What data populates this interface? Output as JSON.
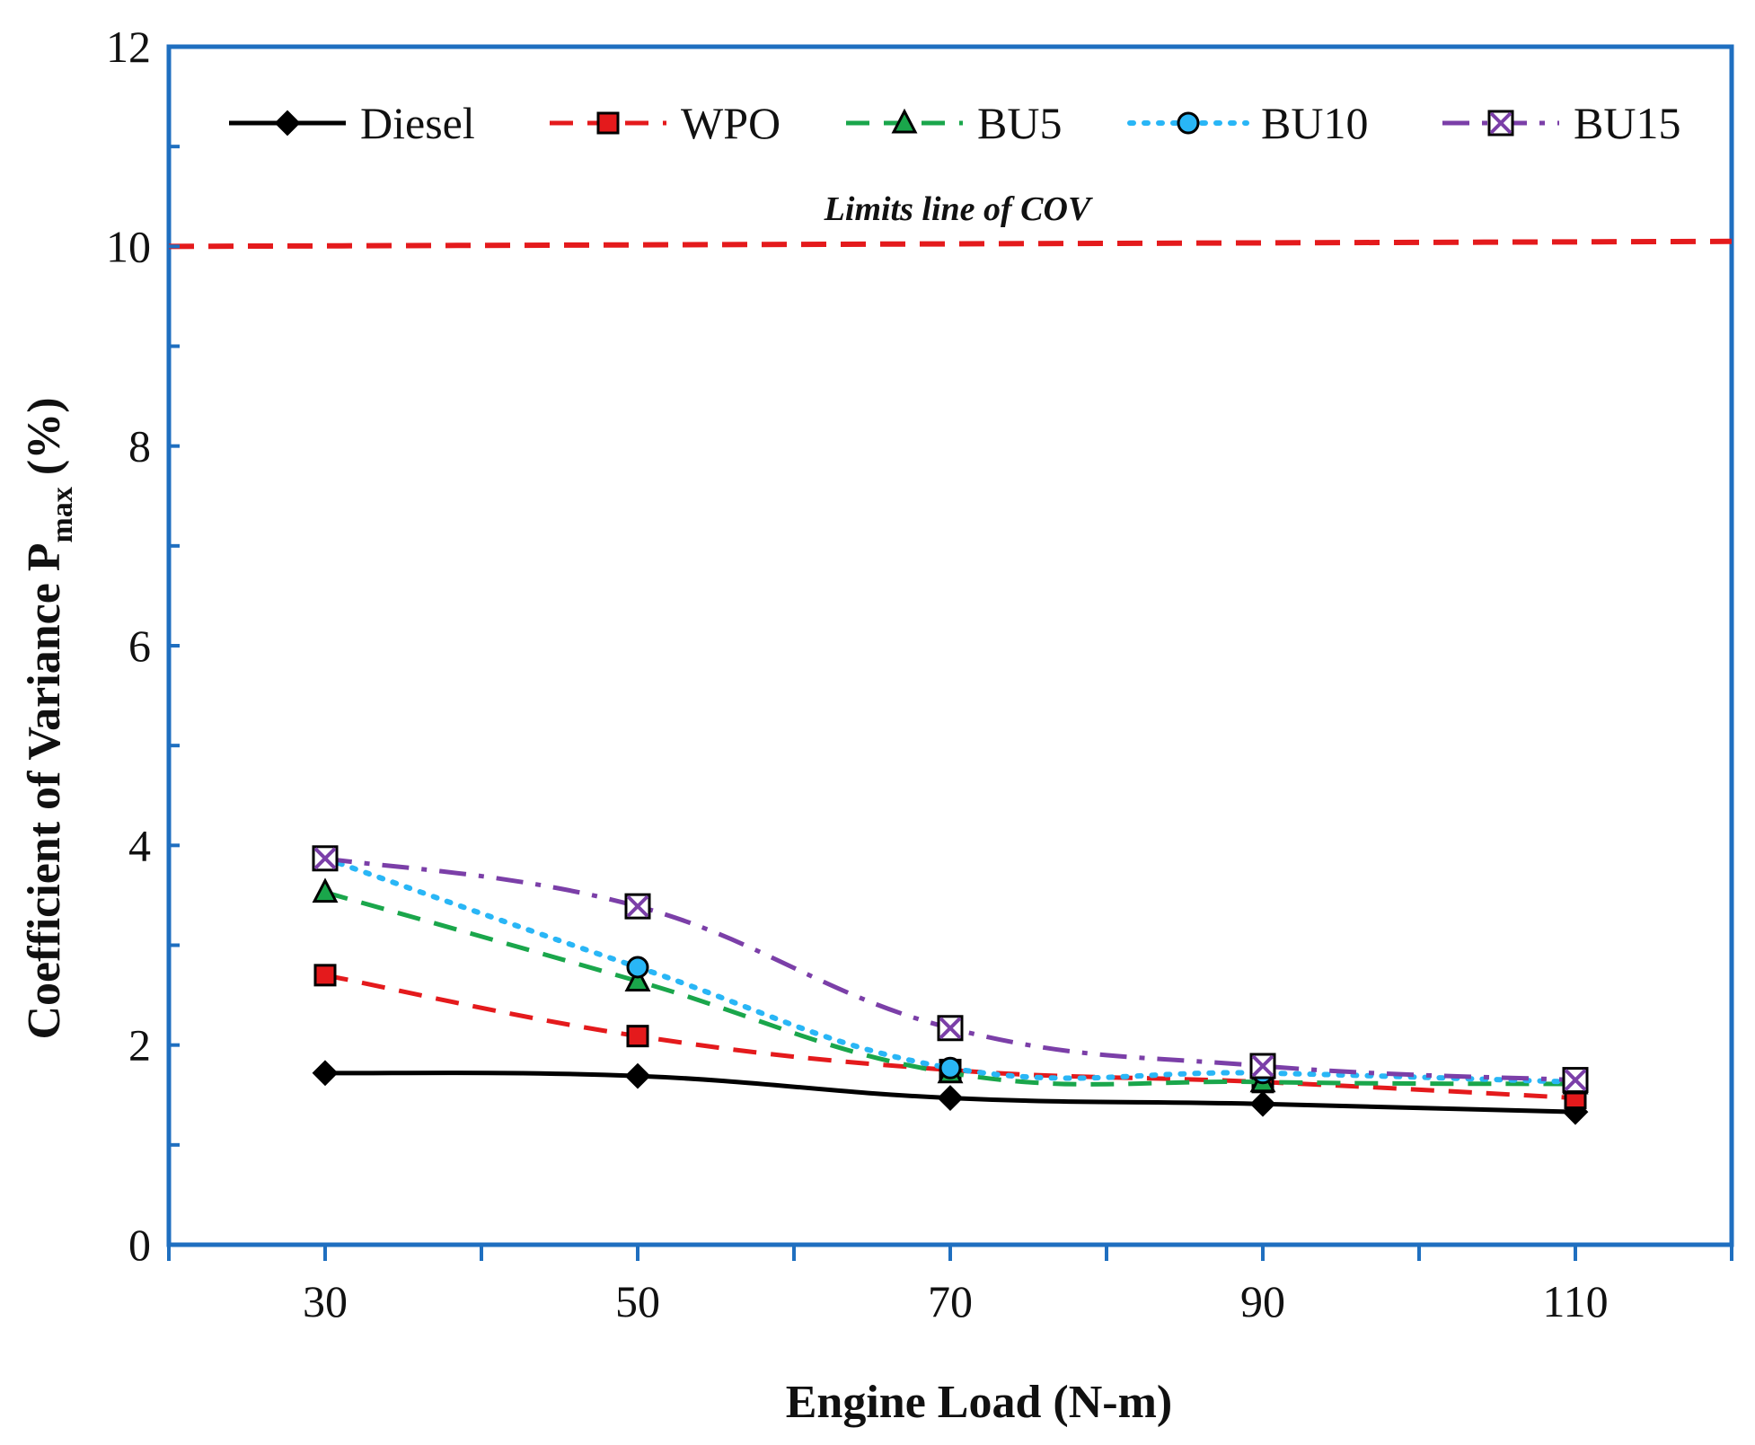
{
  "chart_data": {
    "type": "line",
    "title": "",
    "xlabel": "Engine Load (N-m)",
    "ylabel": {
      "main": "Coefficient of Variance P",
      "subscript": "max",
      "unit": "(%)"
    },
    "x": [
      30,
      50,
      70,
      90,
      110
    ],
    "xlim": [
      20,
      120
    ],
    "ylim": [
      0,
      12
    ],
    "x_ticks": [
      "30",
      "50",
      "70",
      "90",
      "110"
    ],
    "y_ticks": [
      "0",
      "2",
      "4",
      "6",
      "8",
      "10",
      "12"
    ],
    "grid": false,
    "legend_position": "top",
    "series": [
      {
        "name": "Diesel",
        "values": [
          1.72,
          1.69,
          1.47,
          1.41,
          1.33
        ],
        "color": "#000000",
        "dash": "solid",
        "marker": "diamond"
      },
      {
        "name": "WPO",
        "values": [
          2.7,
          2.09,
          1.75,
          1.63,
          1.47
        ],
        "color": "#e41a1c",
        "dash": "dashed",
        "marker": "square"
      },
      {
        "name": "BU5",
        "values": [
          3.53,
          2.64,
          1.72,
          1.63,
          1.61
        ],
        "color": "#1aa64b",
        "dash": "dashed",
        "marker": "triangle"
      },
      {
        "name": "BU10",
        "values": [
          3.87,
          2.78,
          1.77,
          1.72,
          1.63
        ],
        "color": "#29b6f6",
        "dash": "dotted",
        "marker": "circle"
      },
      {
        "name": "BU15",
        "values": [
          3.87,
          3.39,
          2.17,
          1.79,
          1.65
        ],
        "color": "#7b3fa8",
        "dash": "dashdot",
        "marker": "boxx"
      }
    ],
    "reference_line": {
      "label": "Limits line of COV",
      "value": 10,
      "value_end": 10.05,
      "color": "#e41a1c"
    },
    "frame_color": "#1f6fc0"
  }
}
